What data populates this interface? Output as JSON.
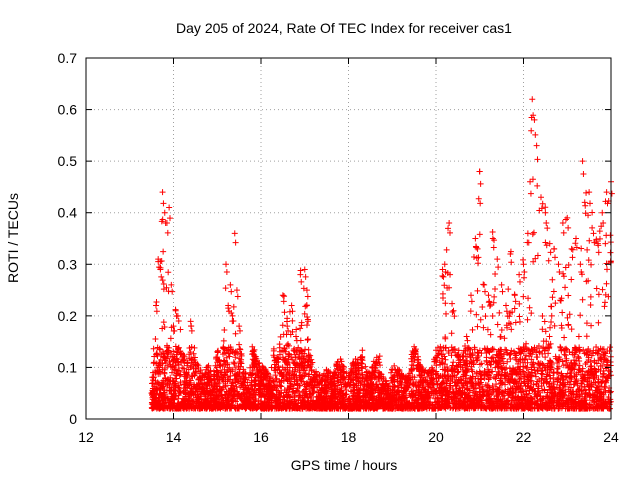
{
  "chart_data": {
    "type": "scatter",
    "title": "Day 205 of 2024, Rate Of TEC Index for receiver cas1",
    "xlabel": "GPS time / hours",
    "ylabel": "ROTI / TECUs",
    "xlim": [
      12,
      24
    ],
    "ylim": [
      0,
      0.7
    ],
    "xticks": [
      "12",
      "14",
      "16",
      "18",
      "20",
      "22",
      "24"
    ],
    "yticks": [
      "0",
      "0.1",
      "0.2",
      "0.3",
      "0.4",
      "0.5",
      "0.6",
      "0.7"
    ],
    "grid": true,
    "marker": "+",
    "color": "#ff0000",
    "series": [
      {
        "name": "cas1",
        "x": [
          13.5,
          13.6,
          13.65,
          13.7,
          13.75,
          13.8,
          13.85,
          13.9,
          13.95,
          14.0,
          14.05,
          14.1,
          14.2,
          14.3,
          14.4,
          14.5,
          14.6,
          14.7,
          14.8,
          14.9,
          15.0,
          15.1,
          15.2,
          15.25,
          15.3,
          15.35,
          15.4,
          15.45,
          15.5,
          15.6,
          15.7,
          15.8,
          15.9,
          16.0,
          16.1,
          16.2,
          16.3,
          16.4,
          16.5,
          16.6,
          16.7,
          16.8,
          16.9,
          17.0,
          17.05,
          17.1,
          17.2,
          17.3,
          17.4,
          17.5,
          17.6,
          17.7,
          17.8,
          17.9,
          18.0,
          18.1,
          18.2,
          18.3,
          18.4,
          18.5,
          18.6,
          18.7,
          18.8,
          18.9,
          19.0,
          19.1,
          19.2,
          19.3,
          19.4,
          19.5,
          19.6,
          19.7,
          19.8,
          19.9,
          20.0,
          20.1,
          20.15,
          20.2,
          20.3,
          20.4,
          20.5,
          20.6,
          20.7,
          20.8,
          20.9,
          20.95,
          21.0,
          21.1,
          21.2,
          21.3,
          21.4,
          21.5,
          21.6,
          21.7,
          21.8,
          21.9,
          22.0,
          22.1,
          22.15,
          22.2,
          22.25,
          22.3,
          22.4,
          22.5,
          22.6,
          22.7,
          22.8,
          22.9,
          23.0,
          23.1,
          23.2,
          23.3,
          23.35,
          23.4,
          23.5,
          23.6,
          23.7,
          23.8,
          23.9,
          24.0
        ],
        "y": [
          0.05,
          0.22,
          0.31,
          0.29,
          0.44,
          0.4,
          0.38,
          0.41,
          0.26,
          0.18,
          0.21,
          0.2,
          0.12,
          0.09,
          0.18,
          0.11,
          0.08,
          0.07,
          0.09,
          0.06,
          0.12,
          0.08,
          0.3,
          0.22,
          0.26,
          0.2,
          0.36,
          0.25,
          0.18,
          0.08,
          0.06,
          0.14,
          0.1,
          0.09,
          0.08,
          0.06,
          0.12,
          0.1,
          0.24,
          0.18,
          0.22,
          0.16,
          0.28,
          0.29,
          0.25,
          0.12,
          0.08,
          0.07,
          0.06,
          0.08,
          0.07,
          0.09,
          0.1,
          0.08,
          0.07,
          0.09,
          0.11,
          0.12,
          0.08,
          0.07,
          0.1,
          0.11,
          0.06,
          0.05,
          0.08,
          0.09,
          0.07,
          0.06,
          0.08,
          0.14,
          0.1,
          0.08,
          0.07,
          0.08,
          0.12,
          0.14,
          0.29,
          0.3,
          0.38,
          0.21,
          0.12,
          0.1,
          0.16,
          0.24,
          0.35,
          0.33,
          0.48,
          0.26,
          0.24,
          0.35,
          0.31,
          0.26,
          0.22,
          0.32,
          0.24,
          0.28,
          0.3,
          0.36,
          0.46,
          0.62,
          0.58,
          0.53,
          0.43,
          0.4,
          0.34,
          0.33,
          0.3,
          0.38,
          0.39,
          0.33,
          0.35,
          0.3,
          0.5,
          0.42,
          0.44,
          0.36,
          0.34,
          0.4,
          0.44,
          0.46
        ],
        "base_floor": 0.02
      }
    ]
  }
}
